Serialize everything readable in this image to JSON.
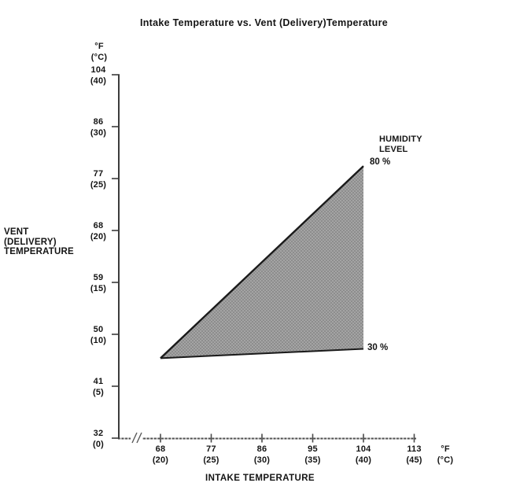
{
  "title": "Intake Temperature vs. Vent (Delivery)Temperature",
  "y_axis": {
    "unit_lines": [
      "°F",
      "(°C)"
    ],
    "axis_label_lines": [
      "VENT",
      "(DELIVERY)",
      "TEMPERATURE"
    ],
    "ticks": [
      {
        "f": "104",
        "c": "(40)"
      },
      {
        "f": "86",
        "c": "(30)"
      },
      {
        "f": "77",
        "c": "(25)"
      },
      {
        "f": "68",
        "c": "(20)"
      },
      {
        "f": "59",
        "c": "(15)"
      },
      {
        "f": "50",
        "c": "(10)"
      },
      {
        "f": "41",
        "c": "(5)"
      },
      {
        "f": "32",
        "c": "(0)"
      }
    ]
  },
  "x_axis": {
    "unit_lines": [
      "°F",
      "(°C)"
    ],
    "axis_label": "INTAKE TEMPERATURE",
    "ticks": [
      {
        "f": "68",
        "c": "(20)"
      },
      {
        "f": "77",
        "c": "(25)"
      },
      {
        "f": "86",
        "c": "(30)"
      },
      {
        "f": "95",
        "c": "(35)"
      },
      {
        "f": "104",
        "c": "(40)"
      },
      {
        "f": "113",
        "c": "(45)"
      }
    ]
  },
  "legend": {
    "title_lines": [
      "HUMIDITY",
      "LEVEL"
    ],
    "upper": "80 %",
    "lower": "30 %"
  },
  "chart_data": {
    "type": "area",
    "title": "Intake Temperature vs. Vent (Delivery)Temperature",
    "xlabel": "INTAKE TEMPERATURE",
    "ylabel": "VENT (DELIVERY) TEMPERATURE",
    "units": "°F (°C)",
    "x_ticks_f": [
      68,
      77,
      86,
      95,
      104,
      113
    ],
    "x_ticks_c": [
      20,
      25,
      30,
      35,
      40,
      45
    ],
    "y_ticks_f": [
      32,
      41,
      50,
      59,
      68,
      77,
      86,
      104
    ],
    "y_ticks_c": [
      0,
      5,
      10,
      15,
      20,
      25,
      30,
      40
    ],
    "legend_title": "HUMIDITY LEVEL",
    "series": [
      {
        "name": "80 %",
        "points": [
          {
            "intake_f": 68,
            "intake_c": 20,
            "vent_f": 46,
            "vent_c": 7.7
          },
          {
            "intake_f": 104,
            "intake_c": 40,
            "vent_f": 79,
            "vent_c": 26.2
          }
        ]
      },
      {
        "name": "30 %",
        "points": [
          {
            "intake_f": 68,
            "intake_c": 20,
            "vent_f": 46,
            "vent_c": 7.7
          },
          {
            "intake_f": 104,
            "intake_c": 40,
            "vent_f": 47.5,
            "vent_c": 8.6
          }
        ]
      }
    ],
    "area_between_series": true,
    "x_axis_break_before_first_tick": true,
    "grid": false,
    "legend_position": "right-of-area-endpoints"
  },
  "colors": {
    "background": "#ffffff",
    "text": "#141414",
    "axis": "#3c3c3c",
    "axis_dash_dark": "#4a4a4a",
    "axis_dash_light": "#c4c4c4",
    "region_fill_dark": "#8d8d8d",
    "region_fill_light": "#a4a4a4",
    "region_stroke": "#1a1a1a"
  }
}
